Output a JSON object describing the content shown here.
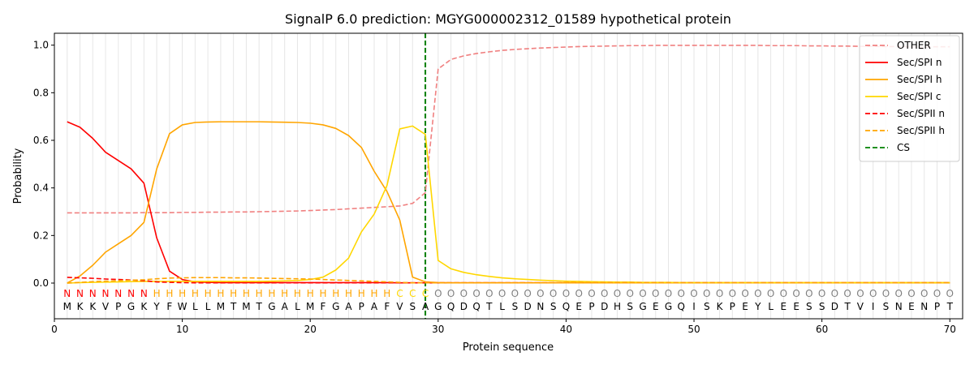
{
  "chart_data": {
    "type": "line",
    "title": "SignalP 6.0 prediction: MGYG000002312_01589 hypothetical protein",
    "xlabel": "Protein sequence",
    "ylabel": "Probability",
    "xlim": [
      0,
      71
    ],
    "ylim": [
      -0.15,
      1.05
    ],
    "xticks": [
      0,
      10,
      20,
      30,
      40,
      50,
      60,
      70
    ],
    "yticks": [
      0.0,
      0.2,
      0.4,
      0.6,
      0.8,
      1.0
    ],
    "grid": "vertical lines at each residue",
    "legend_position": "top-right",
    "sequence": [
      "M",
      "K",
      "K",
      "V",
      "P",
      "G",
      "K",
      "Y",
      "F",
      "W",
      "L",
      "L",
      "M",
      "T",
      "M",
      "T",
      "G",
      "A",
      "L",
      "M",
      "F",
      "G",
      "A",
      "P",
      "A",
      "F",
      "V",
      "S",
      "A",
      "G",
      "Q",
      "D",
      "Q",
      "T",
      "L",
      "S",
      "D",
      "N",
      "S",
      "Q",
      "E",
      "P",
      "D",
      "H",
      "S",
      "G",
      "E",
      "G",
      "Q",
      "I",
      "S",
      "K",
      "P",
      "E",
      "Y",
      "L",
      "E",
      "E",
      "S",
      "S",
      "D",
      "T",
      "V",
      "I",
      "S",
      "N",
      "E",
      "N",
      "P",
      "T"
    ],
    "region_labels": [
      "N",
      "N",
      "N",
      "N",
      "N",
      "N",
      "N",
      "H",
      "H",
      "H",
      "H",
      "H",
      "H",
      "H",
      "H",
      "H",
      "H",
      "H",
      "H",
      "H",
      "H",
      "H",
      "H",
      "H",
      "H",
      "H",
      "C",
      "C",
      "C",
      "O",
      "O",
      "O",
      "O",
      "O",
      "O",
      "O",
      "O",
      "O",
      "O",
      "O",
      "O",
      "O",
      "O",
      "O",
      "O",
      "O",
      "O",
      "O",
      "O",
      "O",
      "O",
      "O",
      "O",
      "O",
      "O",
      "O",
      "O",
      "O",
      "O",
      "O",
      "O",
      "O",
      "O",
      "O",
      "O",
      "O",
      "O",
      "O",
      "O",
      "O"
    ],
    "region_colors": {
      "N": "#ff0000",
      "H": "#ffa500",
      "C": "#ffd700",
      "O": "#808080"
    },
    "cs_position": 29,
    "series": [
      {
        "name": "OTHER",
        "color": "#f08080",
        "dash": "dashed",
        "values": [
          0.295,
          0.295,
          0.295,
          0.295,
          0.295,
          0.295,
          0.296,
          0.296,
          0.296,
          0.297,
          0.297,
          0.298,
          0.298,
          0.299,
          0.299,
          0.3,
          0.301,
          0.302,
          0.303,
          0.305,
          0.307,
          0.309,
          0.312,
          0.315,
          0.318,
          0.321,
          0.324,
          0.335,
          0.38,
          0.9,
          0.94,
          0.955,
          0.965,
          0.972,
          0.978,
          0.982,
          0.985,
          0.988,
          0.99,
          0.992,
          0.994,
          0.995,
          0.996,
          0.997,
          0.998,
          0.998,
          0.999,
          0.999,
          0.999,
          0.999,
          0.999,
          0.999,
          0.999,
          0.999,
          0.999,
          0.998,
          0.998,
          0.998,
          0.997,
          0.997,
          0.996,
          0.996,
          0.995,
          0.995,
          0.994,
          0.994,
          0.993,
          0.993,
          0.993,
          0.993
        ]
      },
      {
        "name": "Sec/SPI n",
        "color": "#ff0000",
        "dash": "solid",
        "values": [
          0.678,
          0.655,
          0.608,
          0.55,
          0.515,
          0.48,
          0.42,
          0.19,
          0.05,
          0.015,
          0.005,
          0.003,
          0.002,
          0.002,
          0.002,
          0.002,
          0.002,
          0.002,
          0.002,
          0.002,
          0.002,
          0.002,
          0.002,
          0.002,
          0.002,
          0.002,
          0.001,
          0.001,
          0.001,
          0.001,
          0.001,
          0.001,
          0.001,
          0.001,
          0.001,
          0.001,
          0.001,
          0.001,
          0.001,
          0.001,
          0.001,
          0.001,
          0.001,
          0.001,
          0.001,
          0.001,
          0.001,
          0.001,
          0.001,
          0.001,
          0.001,
          0.001,
          0.001,
          0.001,
          0.001,
          0.001,
          0.001,
          0.001,
          0.001,
          0.001,
          0.001,
          0.001,
          0.001,
          0.001,
          0.001,
          0.001,
          0.001,
          0.001,
          0.001,
          0.001
        ]
      },
      {
        "name": "Sec/SPI h",
        "color": "#ffa500",
        "dash": "solid",
        "values": [
          0.0,
          0.03,
          0.075,
          0.13,
          0.165,
          0.2,
          0.255,
          0.48,
          0.628,
          0.665,
          0.675,
          0.677,
          0.678,
          0.678,
          0.678,
          0.678,
          0.677,
          0.676,
          0.675,
          0.672,
          0.665,
          0.65,
          0.62,
          0.57,
          0.47,
          0.385,
          0.265,
          0.025,
          0.005,
          0.002,
          0.001,
          0.001,
          0.001,
          0.001,
          0.001,
          0.001,
          0.001,
          0.001,
          0.001,
          0.001,
          0.001,
          0.001,
          0.001,
          0.001,
          0.001,
          0.001,
          0.001,
          0.001,
          0.001,
          0.001,
          0.001,
          0.001,
          0.001,
          0.001,
          0.001,
          0.001,
          0.001,
          0.001,
          0.001,
          0.001,
          0.001,
          0.001,
          0.001,
          0.001,
          0.001,
          0.001,
          0.001,
          0.001,
          0.001,
          0.001
        ]
      },
      {
        "name": "Sec/SPI c",
        "color": "#ffd700",
        "dash": "solid",
        "values": [
          0.0,
          0.002,
          0.003,
          0.004,
          0.005,
          0.006,
          0.007,
          0.007,
          0.007,
          0.007,
          0.007,
          0.007,
          0.007,
          0.007,
          0.007,
          0.007,
          0.008,
          0.009,
          0.011,
          0.015,
          0.025,
          0.055,
          0.105,
          0.215,
          0.29,
          0.41,
          0.648,
          0.66,
          0.625,
          0.095,
          0.06,
          0.045,
          0.035,
          0.028,
          0.022,
          0.018,
          0.015,
          0.012,
          0.01,
          0.008,
          0.007,
          0.006,
          0.005,
          0.004,
          0.004,
          0.003,
          0.003,
          0.003,
          0.002,
          0.002,
          0.002,
          0.002,
          0.002,
          0.002,
          0.002,
          0.002,
          0.002,
          0.002,
          0.002,
          0.002,
          0.002,
          0.002,
          0.002,
          0.002,
          0.002,
          0.002,
          0.002,
          0.002,
          0.002,
          0.002
        ]
      },
      {
        "name": "Sec/SPII n",
        "color": "#ff0000",
        "dash": "dashed",
        "values": [
          0.024,
          0.022,
          0.02,
          0.017,
          0.015,
          0.013,
          0.01,
          0.005,
          0.003,
          0.002,
          0.001,
          0.001,
          0.001,
          0.001,
          0.001,
          0.001,
          0.001,
          0.001,
          0.001,
          0.001,
          0.001,
          0.001,
          0.001,
          0.001,
          0.001,
          0.001,
          0.001,
          0.001,
          0.001,
          0.001,
          0.001,
          0.001,
          0.001,
          0.001,
          0.001,
          0.001,
          0.001,
          0.001,
          0.001,
          0.001,
          0.001,
          0.001,
          0.001,
          0.001,
          0.001,
          0.001,
          0.001,
          0.001,
          0.001,
          0.001,
          0.001,
          0.001,
          0.001,
          0.001,
          0.001,
          0.001,
          0.001,
          0.001,
          0.001,
          0.001,
          0.001,
          0.001,
          0.001,
          0.001,
          0.001,
          0.001,
          0.001,
          0.001,
          0.001,
          0.001
        ]
      },
      {
        "name": "Sec/SPII h",
        "color": "#ffa500",
        "dash": "dashed",
        "values": [
          0.0,
          0.003,
          0.006,
          0.008,
          0.01,
          0.012,
          0.014,
          0.018,
          0.021,
          0.022,
          0.023,
          0.023,
          0.023,
          0.022,
          0.022,
          0.021,
          0.02,
          0.019,
          0.018,
          0.017,
          0.015,
          0.013,
          0.011,
          0.009,
          0.007,
          0.005,
          0.003,
          0.001,
          0.001,
          0.001,
          0.001,
          0.001,
          0.001,
          0.001,
          0.001,
          0.001,
          0.001,
          0.001,
          0.001,
          0.001,
          0.001,
          0.001,
          0.001,
          0.001,
          0.001,
          0.001,
          0.001,
          0.001,
          0.001,
          0.001,
          0.001,
          0.001,
          0.001,
          0.001,
          0.001,
          0.001,
          0.001,
          0.001,
          0.001,
          0.001,
          0.001,
          0.001,
          0.001,
          0.001,
          0.001,
          0.001,
          0.001,
          0.001,
          0.001,
          0.001
        ]
      },
      {
        "name": "CS",
        "color": "#008000",
        "dash": "dashed",
        "values": []
      }
    ]
  }
}
